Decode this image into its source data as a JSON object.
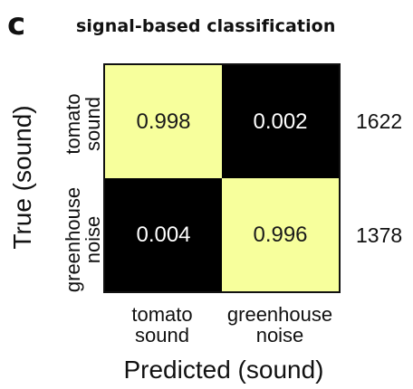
{
  "panel_label": "c",
  "title": "signal-based classification",
  "chart_data": {
    "type": "heatmap",
    "title": "signal-based classification",
    "xlabel": "Predicted (sound)",
    "ylabel": "True (sound)",
    "x_categories": [
      {
        "line1": "tomato",
        "line2": "sound"
      },
      {
        "line1": "greenhouse",
        "line2": "noise"
      }
    ],
    "y_categories": [
      {
        "line1": "tomato",
        "line2": "sound"
      },
      {
        "line1": "greenhouse",
        "line2": "noise"
      }
    ],
    "values": [
      [
        "0.998",
        "0.002"
      ],
      [
        "0.004",
        "0.996"
      ]
    ],
    "row_totals": [
      "1622",
      "1378"
    ],
    "colors": {
      "high": "#f7ff9c",
      "low": "#000000",
      "text_on_high": "#1a1a1a",
      "text_on_low": "#ffffff"
    }
  }
}
